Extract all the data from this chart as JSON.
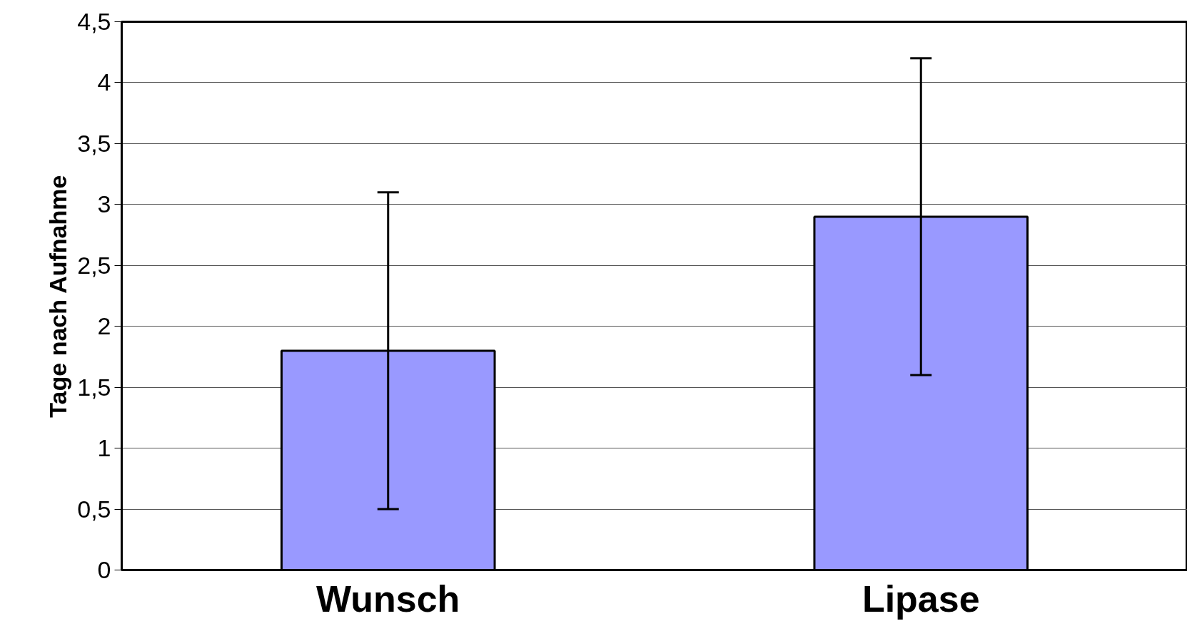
{
  "chart_data": {
    "type": "bar",
    "ylabel": "Tage nach Aufnahme",
    "categories": [
      "Wunsch",
      "Lipase"
    ],
    "values": [
      1.8,
      2.9
    ],
    "errors": [
      1.3,
      1.3
    ],
    "color": "#9999ff",
    "ylim": [
      0,
      4.5
    ],
    "yticks": [
      0,
      {
        "value": 0.5,
        "label": "0,5"
      },
      1,
      {
        "value": 1.5,
        "label": "1,5"
      },
      2,
      {
        "value": 2.5,
        "label": "2,5"
      },
      3,
      {
        "value": 3.5,
        "label": "3,5"
      },
      4,
      {
        "value": 4.5,
        "label": "4,5"
      }
    ],
    "grid": "y"
  }
}
